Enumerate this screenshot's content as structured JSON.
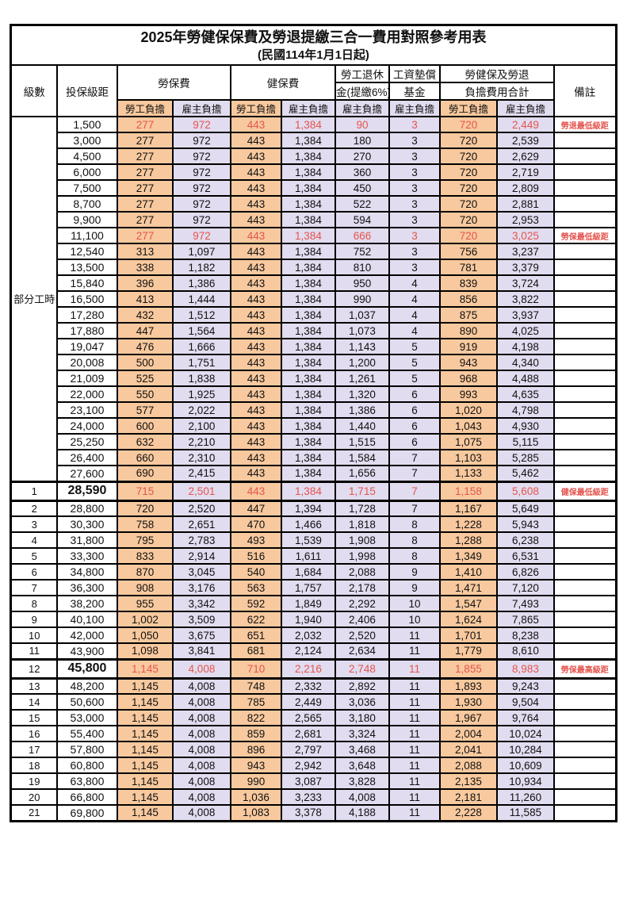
{
  "title": "2025年勞健保保費及勞退提繳三合一費用對照參考用表",
  "subtitle": "(民國114年1月1日起)",
  "colors": {
    "employee_bg": "#F8C99E",
    "employer_bg": "#E1DCEF",
    "highlight_red": "#E5544E",
    "border": "#000000"
  },
  "header": {
    "level_label": "級數",
    "bracket_label": "投保級距",
    "labor_insurance_label": "勞保費",
    "health_insurance_label": "健保費",
    "pension_line1": "勞工退休",
    "pension_line2": "金(提繳6%)",
    "wage_fund_line1": "工資墊償",
    "wage_fund_line2": "基金",
    "total_line1": "勞健保及勞退",
    "total_line2": "負擔費用合計",
    "note_label": "備註",
    "employee_label": "勞工負擔",
    "employer_label": "雇主負擔"
  },
  "part_time_label": "部分工時",
  "part_time_span": 23,
  "rows": [
    {
      "c": [
        "",
        "1,500",
        "277",
        "972",
        "443",
        "1,384",
        "90",
        "3",
        "720",
        "2,449"
      ],
      "note": "勞退最低級距",
      "red": true,
      "em": false
    },
    {
      "c": [
        "",
        "3,000",
        "277",
        "972",
        "443",
        "1,384",
        "180",
        "3",
        "720",
        "2,539"
      ],
      "note": "",
      "red": false,
      "em": false
    },
    {
      "c": [
        "",
        "4,500",
        "277",
        "972",
        "443",
        "1,384",
        "270",
        "3",
        "720",
        "2,629"
      ],
      "note": "",
      "red": false,
      "em": false
    },
    {
      "c": [
        "",
        "6,000",
        "277",
        "972",
        "443",
        "1,384",
        "360",
        "3",
        "720",
        "2,719"
      ],
      "note": "",
      "red": false,
      "em": false
    },
    {
      "c": [
        "",
        "7,500",
        "277",
        "972",
        "443",
        "1,384",
        "450",
        "3",
        "720",
        "2,809"
      ],
      "note": "",
      "red": false,
      "em": false
    },
    {
      "c": [
        "",
        "8,700",
        "277",
        "972",
        "443",
        "1,384",
        "522",
        "3",
        "720",
        "2,881"
      ],
      "note": "",
      "red": false,
      "em": false
    },
    {
      "c": [
        "",
        "9,900",
        "277",
        "972",
        "443",
        "1,384",
        "594",
        "3",
        "720",
        "2,953"
      ],
      "note": "",
      "red": false,
      "em": false
    },
    {
      "c": [
        "",
        "11,100",
        "277",
        "972",
        "443",
        "1,384",
        "666",
        "3",
        "720",
        "3,025"
      ],
      "note": "勞保最低級距",
      "red": true,
      "em": false
    },
    {
      "c": [
        "",
        "12,540",
        "313",
        "1,097",
        "443",
        "1,384",
        "752",
        "3",
        "756",
        "3,237"
      ],
      "note": "",
      "red": false,
      "em": false
    },
    {
      "c": [
        "",
        "13,500",
        "338",
        "1,182",
        "443",
        "1,384",
        "810",
        "3",
        "781",
        "3,379"
      ],
      "note": "",
      "red": false,
      "em": false
    },
    {
      "c": [
        "",
        "15,840",
        "396",
        "1,386",
        "443",
        "1,384",
        "950",
        "4",
        "839",
        "3,724"
      ],
      "note": "",
      "red": false,
      "em": false
    },
    {
      "c": [
        "",
        "16,500",
        "413",
        "1,444",
        "443",
        "1,384",
        "990",
        "4",
        "856",
        "3,822"
      ],
      "note": "",
      "red": false,
      "em": false
    },
    {
      "c": [
        "",
        "17,280",
        "432",
        "1,512",
        "443",
        "1,384",
        "1,037",
        "4",
        "875",
        "3,937"
      ],
      "note": "",
      "red": false,
      "em": false
    },
    {
      "c": [
        "",
        "17,880",
        "447",
        "1,564",
        "443",
        "1,384",
        "1,073",
        "4",
        "890",
        "4,025"
      ],
      "note": "",
      "red": false,
      "em": false
    },
    {
      "c": [
        "",
        "19,047",
        "476",
        "1,666",
        "443",
        "1,384",
        "1,143",
        "5",
        "919",
        "4,198"
      ],
      "note": "",
      "red": false,
      "em": false
    },
    {
      "c": [
        "",
        "20,008",
        "500",
        "1,751",
        "443",
        "1,384",
        "1,200",
        "5",
        "943",
        "4,340"
      ],
      "note": "",
      "red": false,
      "em": false
    },
    {
      "c": [
        "",
        "21,009",
        "525",
        "1,838",
        "443",
        "1,384",
        "1,261",
        "5",
        "968",
        "4,488"
      ],
      "note": "",
      "red": false,
      "em": false
    },
    {
      "c": [
        "",
        "22,000",
        "550",
        "1,925",
        "443",
        "1,384",
        "1,320",
        "6",
        "993",
        "4,635"
      ],
      "note": "",
      "red": false,
      "em": false
    },
    {
      "c": [
        "",
        "23,100",
        "577",
        "2,022",
        "443",
        "1,384",
        "1,386",
        "6",
        "1,020",
        "4,798"
      ],
      "note": "",
      "red": false,
      "em": false
    },
    {
      "c": [
        "",
        "24,000",
        "600",
        "2,100",
        "443",
        "1,384",
        "1,440",
        "6",
        "1,043",
        "4,930"
      ],
      "note": "",
      "red": false,
      "em": false
    },
    {
      "c": [
        "",
        "25,250",
        "632",
        "2,210",
        "443",
        "1,384",
        "1,515",
        "6",
        "1,075",
        "5,115"
      ],
      "note": "",
      "red": false,
      "em": false
    },
    {
      "c": [
        "",
        "26,400",
        "660",
        "2,310",
        "443",
        "1,384",
        "1,584",
        "7",
        "1,103",
        "5,285"
      ],
      "note": "",
      "red": false,
      "em": false
    },
    {
      "c": [
        "",
        "27,600",
        "690",
        "2,415",
        "443",
        "1,384",
        "1,656",
        "7",
        "1,133",
        "5,462"
      ],
      "note": "",
      "red": false,
      "em": false
    },
    {
      "c": [
        "1",
        "28,590",
        "715",
        "2,501",
        "443",
        "1,384",
        "1,715",
        "7",
        "1,158",
        "5,608"
      ],
      "note": "健保最低級距",
      "red": true,
      "em": true
    },
    {
      "c": [
        "2",
        "28,800",
        "720",
        "2,520",
        "447",
        "1,394",
        "1,728",
        "7",
        "1,167",
        "5,649"
      ],
      "note": "",
      "red": false,
      "em": false
    },
    {
      "c": [
        "3",
        "30,300",
        "758",
        "2,651",
        "470",
        "1,466",
        "1,818",
        "8",
        "1,228",
        "5,943"
      ],
      "note": "",
      "red": false,
      "em": false
    },
    {
      "c": [
        "4",
        "31,800",
        "795",
        "2,783",
        "493",
        "1,539",
        "1,908",
        "8",
        "1,288",
        "6,238"
      ],
      "note": "",
      "red": false,
      "em": false
    },
    {
      "c": [
        "5",
        "33,300",
        "833",
        "2,914",
        "516",
        "1,611",
        "1,998",
        "8",
        "1,349",
        "6,531"
      ],
      "note": "",
      "red": false,
      "em": false
    },
    {
      "c": [
        "6",
        "34,800",
        "870",
        "3,045",
        "540",
        "1,684",
        "2,088",
        "9",
        "1,410",
        "6,826"
      ],
      "note": "",
      "red": false,
      "em": false
    },
    {
      "c": [
        "7",
        "36,300",
        "908",
        "3,176",
        "563",
        "1,757",
        "2,178",
        "9",
        "1,471",
        "7,120"
      ],
      "note": "",
      "red": false,
      "em": false
    },
    {
      "c": [
        "8",
        "38,200",
        "955",
        "3,342",
        "592",
        "1,849",
        "2,292",
        "10",
        "1,547",
        "7,493"
      ],
      "note": "",
      "red": false,
      "em": false
    },
    {
      "c": [
        "9",
        "40,100",
        "1,002",
        "3,509",
        "622",
        "1,940",
        "2,406",
        "10",
        "1,624",
        "7,865"
      ],
      "note": "",
      "red": false,
      "em": false
    },
    {
      "c": [
        "10",
        "42,000",
        "1,050",
        "3,675",
        "651",
        "2,032",
        "2,520",
        "11",
        "1,701",
        "8,238"
      ],
      "note": "",
      "red": false,
      "em": false
    },
    {
      "c": [
        "11",
        "43,900",
        "1,098",
        "3,841",
        "681",
        "2,124",
        "2,634",
        "11",
        "1,779",
        "8,610"
      ],
      "note": "",
      "red": false,
      "em": false
    },
    {
      "c": [
        "12",
        "45,800",
        "1,145",
        "4,008",
        "710",
        "2,216",
        "2,748",
        "11",
        "1,855",
        "8,983"
      ],
      "note": "勞保最高級距",
      "red": true,
      "em": true
    },
    {
      "c": [
        "13",
        "48,200",
        "1,145",
        "4,008",
        "748",
        "2,332",
        "2,892",
        "11",
        "1,893",
        "9,243"
      ],
      "note": "",
      "red": false,
      "em": false
    },
    {
      "c": [
        "14",
        "50,600",
        "1,145",
        "4,008",
        "785",
        "2,449",
        "3,036",
        "11",
        "1,930",
        "9,504"
      ],
      "note": "",
      "red": false,
      "em": false
    },
    {
      "c": [
        "15",
        "53,000",
        "1,145",
        "4,008",
        "822",
        "2,565",
        "3,180",
        "11",
        "1,967",
        "9,764"
      ],
      "note": "",
      "red": false,
      "em": false
    },
    {
      "c": [
        "16",
        "55,400",
        "1,145",
        "4,008",
        "859",
        "2,681",
        "3,324",
        "11",
        "2,004",
        "10,024"
      ],
      "note": "",
      "red": false,
      "em": false
    },
    {
      "c": [
        "17",
        "57,800",
        "1,145",
        "4,008",
        "896",
        "2,797",
        "3,468",
        "11",
        "2,041",
        "10,284"
      ],
      "note": "",
      "red": false,
      "em": false
    },
    {
      "c": [
        "18",
        "60,800",
        "1,145",
        "4,008",
        "943",
        "2,942",
        "3,648",
        "11",
        "2,088",
        "10,609"
      ],
      "note": "",
      "red": false,
      "em": false
    },
    {
      "c": [
        "19",
        "63,800",
        "1,145",
        "4,008",
        "990",
        "3,087",
        "3,828",
        "11",
        "2,135",
        "10,934"
      ],
      "note": "",
      "red": false,
      "em": false
    },
    {
      "c": [
        "20",
        "66,800",
        "1,145",
        "4,008",
        "1,036",
        "3,233",
        "4,008",
        "11",
        "2,181",
        "11,260"
      ],
      "note": "",
      "red": false,
      "em": false
    },
    {
      "c": [
        "21",
        "69,800",
        "1,145",
        "4,008",
        "1,083",
        "3,378",
        "4,188",
        "11",
        "2,228",
        "11,585"
      ],
      "note": "",
      "red": false,
      "em": false
    }
  ]
}
